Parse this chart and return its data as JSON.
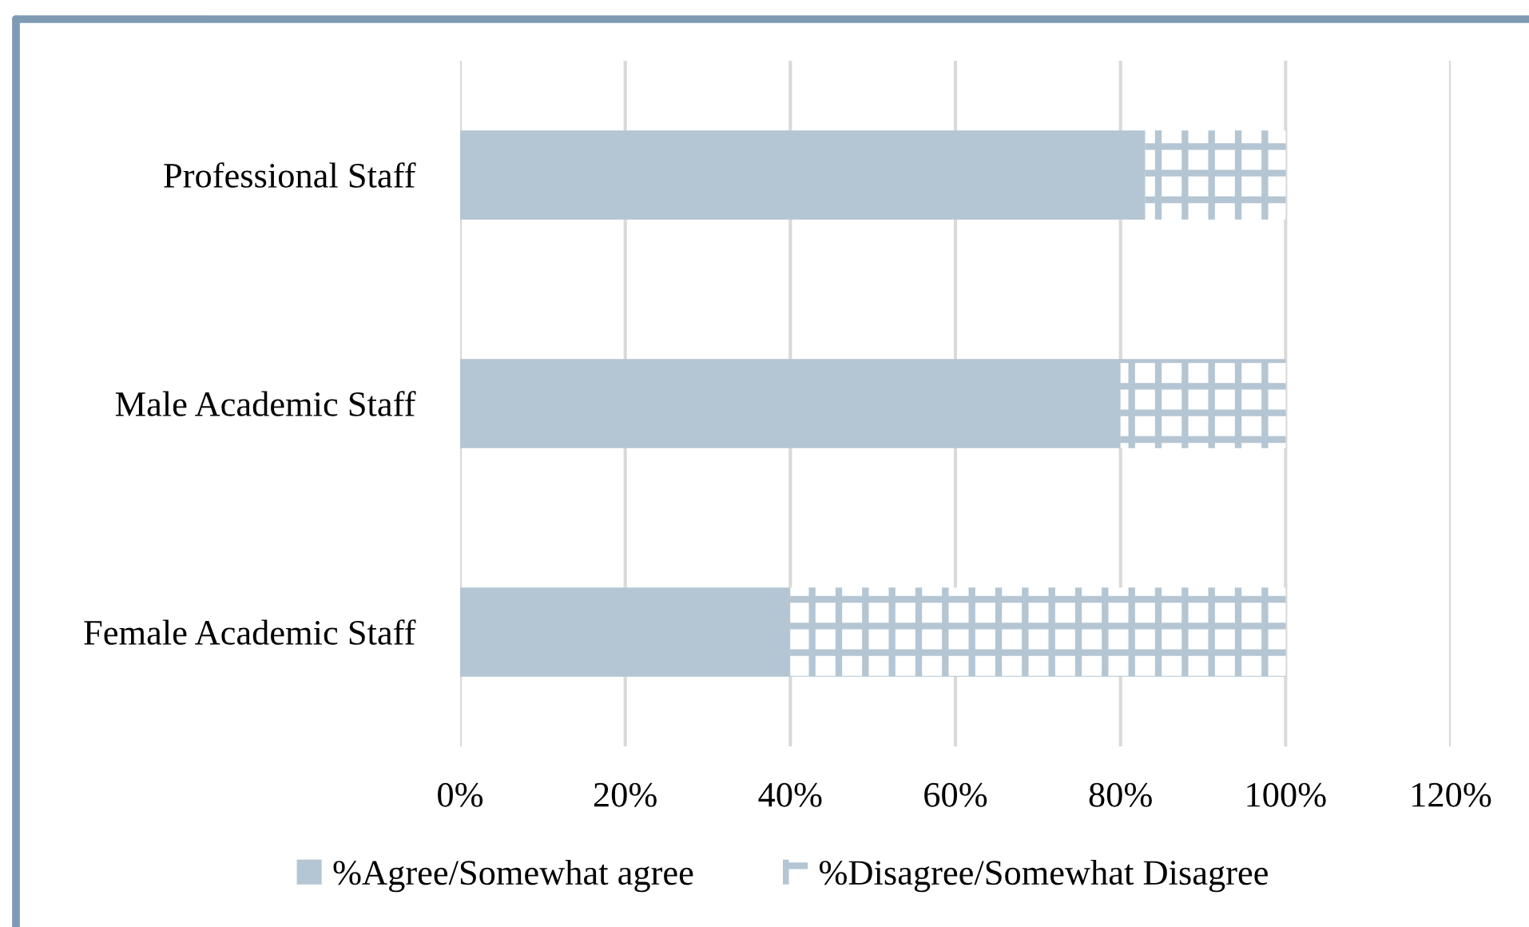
{
  "chart_data": {
    "type": "bar",
    "orientation": "horizontal",
    "stacked": true,
    "categories": [
      "Professional Staff",
      "Male Academic Staff",
      "Female Academic Staff"
    ],
    "series": [
      {
        "name": "%Agree/Somewhat agree",
        "color": "#b4c5d3",
        "values": [
          83,
          80,
          40
        ]
      },
      {
        "name": "%Disagree/Somewhat Disagree",
        "color": "#b4c5d3",
        "values": [
          17,
          20,
          60
        ]
      }
    ],
    "xlim": [
      0,
      120
    ],
    "xticks": [
      {
        "value": 0,
        "label": "0%"
      },
      {
        "value": 20,
        "label": "20%"
      },
      {
        "value": 40,
        "label": "40%"
      },
      {
        "value": 60,
        "label": "60%"
      },
      {
        "value": 80,
        "label": "80%"
      },
      {
        "value": 100,
        "label": "100%"
      },
      {
        "value": 120,
        "label": "120%"
      }
    ],
    "grid": "x",
    "legend": "bottom"
  }
}
